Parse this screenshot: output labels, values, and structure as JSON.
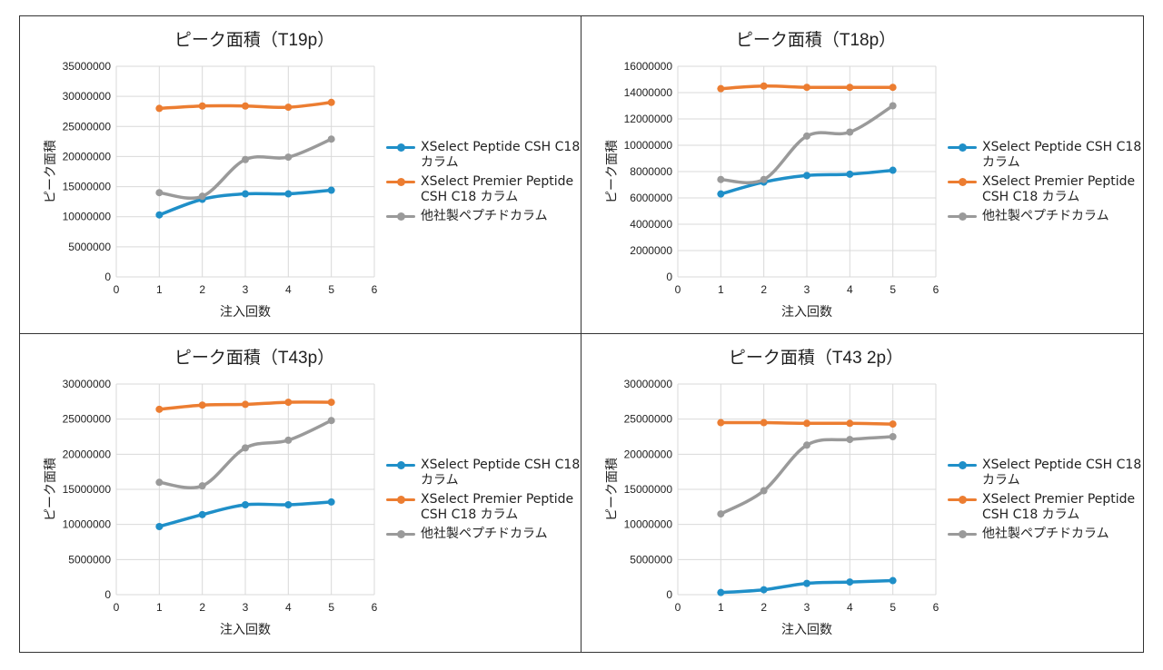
{
  "colors": {
    "series_1": "#1f8fc8",
    "series_2": "#ec7d31",
    "series_3": "#9a9a9a",
    "grid": "#d9d9d9",
    "border": "#333333"
  },
  "legend_labels": [
    "XSelect Peptide CSH C18\nカラム",
    "XSelect Premier Peptide\nCSH C18 カラム",
    "他社製ペプチドカラム"
  ],
  "chart_data": [
    {
      "type": "line",
      "title": "ピーク面積（T19p）",
      "xlabel": "注入回数",
      "ylabel": "ピーク面積",
      "xlim": [
        0,
        6
      ],
      "ylim": [
        0,
        35000000
      ],
      "x_ticks": [
        "0",
        "1",
        "2",
        "3",
        "4",
        "5",
        "6"
      ],
      "y_ticks": [
        "0",
        "5000000",
        "10000000",
        "15000000",
        "20000000",
        "25000000",
        "30000000",
        "35000000"
      ],
      "x": [
        1,
        2,
        3,
        4,
        5
      ],
      "series": [
        {
          "name": "XSelect Peptide CSH C18 カラム",
          "values": [
            10300000,
            12900000,
            13800000,
            13800000,
            14400000
          ]
        },
        {
          "name": "XSelect Premier Peptide CSH C18 カラム",
          "values": [
            28000000,
            28400000,
            28400000,
            28200000,
            29000000
          ]
        },
        {
          "name": "他社製ペプチドカラム",
          "values": [
            14000000,
            13400000,
            19500000,
            19900000,
            22900000
          ]
        }
      ]
    },
    {
      "type": "line",
      "title": "ピーク面積（T18p）",
      "xlabel": "注入回数",
      "ylabel": "ピーク面積",
      "xlim": [
        0,
        6
      ],
      "ylim": [
        0,
        16000000
      ],
      "x_ticks": [
        "0",
        "1",
        "2",
        "3",
        "4",
        "5",
        "6"
      ],
      "y_ticks": [
        "0",
        "2000000",
        "4000000",
        "6000000",
        "8000000",
        "10000000",
        "12000000",
        "14000000",
        "16000000"
      ],
      "x": [
        1,
        2,
        3,
        4,
        5
      ],
      "series": [
        {
          "name": "XSelect Peptide CSH C18 カラム",
          "values": [
            6300000,
            7200000,
            7700000,
            7800000,
            8100000
          ]
        },
        {
          "name": "XSelect Premier Peptide CSH C18 カラム",
          "values": [
            14300000,
            14500000,
            14400000,
            14400000,
            14400000
          ]
        },
        {
          "name": "他社製ペプチドカラム",
          "values": [
            7400000,
            7400000,
            10700000,
            11000000,
            13000000
          ]
        }
      ]
    },
    {
      "type": "line",
      "title": "ピーク面積（T43p）",
      "xlabel": "注入回数",
      "ylabel": "ピーク面積",
      "xlim": [
        0,
        6
      ],
      "ylim": [
        0,
        30000000
      ],
      "x_ticks": [
        "0",
        "1",
        "2",
        "3",
        "4",
        "5",
        "6"
      ],
      "y_ticks": [
        "0",
        "5000000",
        "10000000",
        "15000000",
        "20000000",
        "25000000",
        "30000000"
      ],
      "x": [
        1,
        2,
        3,
        4,
        5
      ],
      "series": [
        {
          "name": "XSelect Peptide CSH C18 カラム",
          "values": [
            9700000,
            11400000,
            12800000,
            12800000,
            13200000
          ]
        },
        {
          "name": "XSelect Premier Peptide CSH C18 カラム",
          "values": [
            26400000,
            27000000,
            27100000,
            27400000,
            27400000
          ]
        },
        {
          "name": "他社製ペプチドカラム",
          "values": [
            16000000,
            15500000,
            20900000,
            22000000,
            24800000
          ]
        }
      ]
    },
    {
      "type": "line",
      "title": "ピーク面積（T43 2p）",
      "xlabel": "注入回数",
      "ylabel": "ピーク面積",
      "xlim": [
        0,
        6
      ],
      "ylim": [
        0,
        30000000
      ],
      "x_ticks": [
        "0",
        "1",
        "2",
        "3",
        "4",
        "5",
        "6"
      ],
      "y_ticks": [
        "0",
        "5000000",
        "10000000",
        "15000000",
        "20000000",
        "25000000",
        "30000000"
      ],
      "x": [
        1,
        2,
        3,
        4,
        5
      ],
      "series": [
        {
          "name": "XSelect Peptide CSH C18 カラム",
          "values": [
            300000,
            700000,
            1600000,
            1800000,
            2000000
          ]
        },
        {
          "name": "XSelect Premier Peptide CSH C18 カラム",
          "values": [
            24500000,
            24500000,
            24400000,
            24400000,
            24300000
          ]
        },
        {
          "name": "他社製ペプチドカラム",
          "values": [
            11500000,
            14800000,
            21300000,
            22100000,
            22500000
          ]
        }
      ]
    }
  ]
}
